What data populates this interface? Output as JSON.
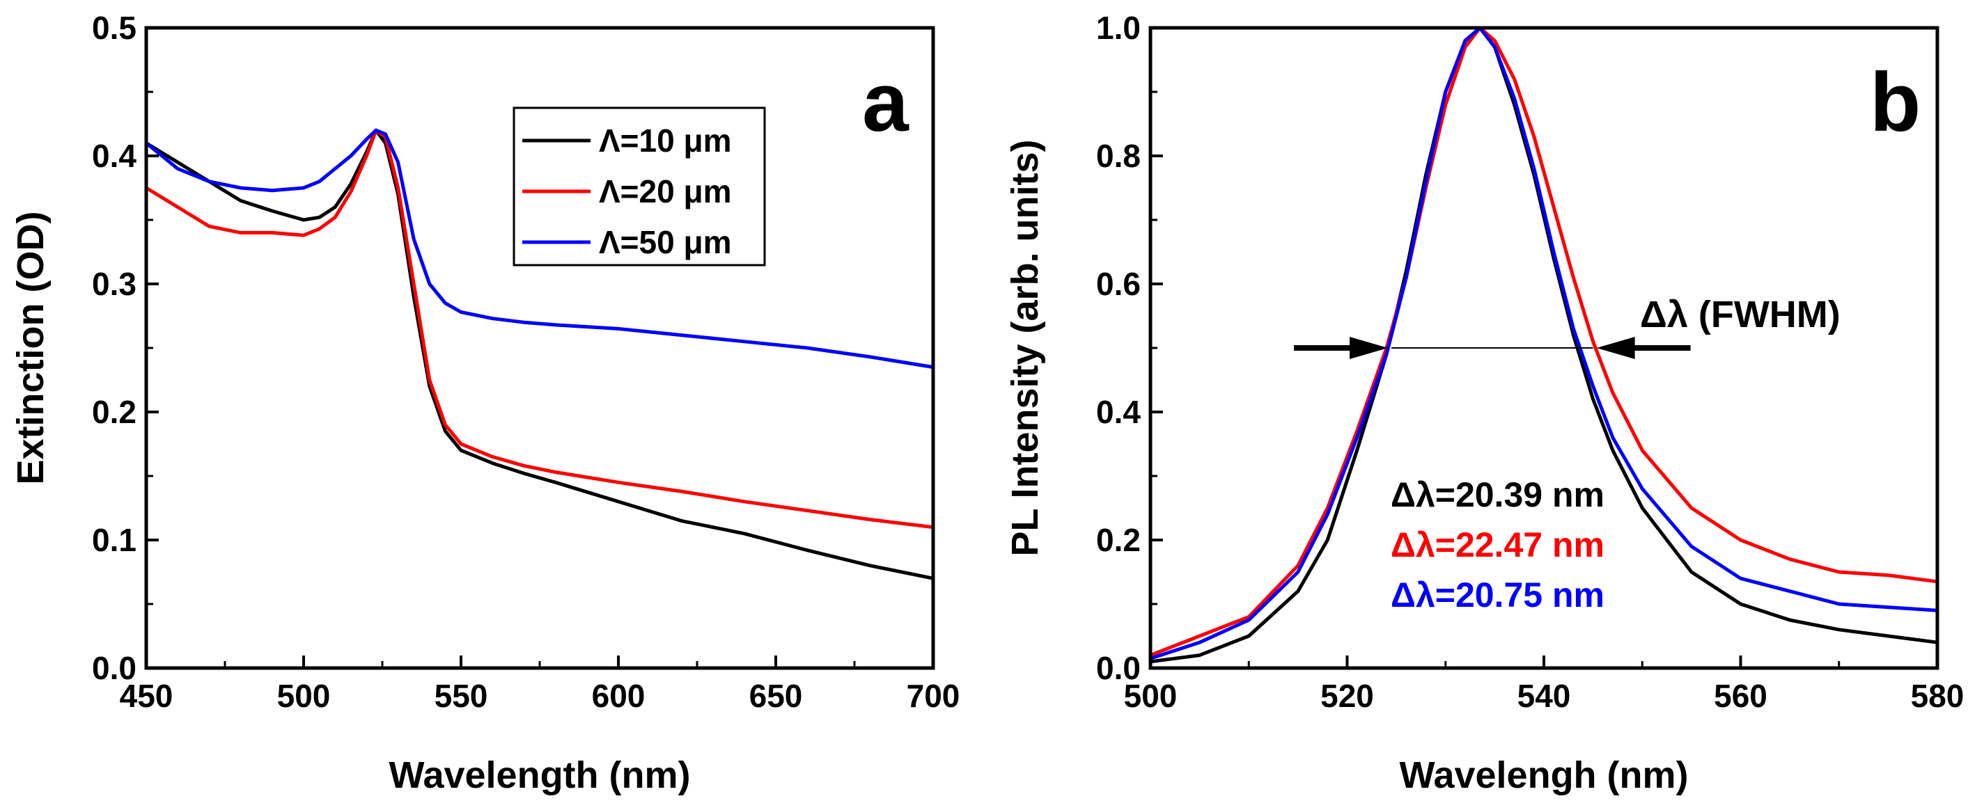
{
  "chart_data": [
    {
      "type": "line",
      "panel_label": "a",
      "xlabel": "Wavelength (nm)",
      "ylabel": "Extinction (OD)",
      "xlim": [
        450,
        700
      ],
      "ylim": [
        0.0,
        0.5
      ],
      "xticks": [
        "450",
        "500",
        "550",
        "600",
        "650",
        "700"
      ],
      "yticks": [
        "0.0",
        "0.1",
        "0.2",
        "0.3",
        "0.4",
        "0.5"
      ],
      "legend_position": "top-right",
      "series": [
        {
          "name": "Λ=10 μm",
          "color": "#000000",
          "x": [
            450,
            460,
            470,
            480,
            490,
            500,
            505,
            510,
            515,
            520,
            523,
            526,
            530,
            535,
            540,
            545,
            550,
            560,
            570,
            580,
            600,
            620,
            640,
            660,
            680,
            700
          ],
          "y": [
            0.41,
            0.395,
            0.38,
            0.365,
            0.357,
            0.35,
            0.352,
            0.36,
            0.378,
            0.403,
            0.42,
            0.41,
            0.37,
            0.29,
            0.22,
            0.185,
            0.17,
            0.16,
            0.152,
            0.145,
            0.13,
            0.115,
            0.105,
            0.092,
            0.08,
            0.07
          ]
        },
        {
          "name": "Λ=20 μm",
          "color": "#ff0000",
          "x": [
            450,
            460,
            470,
            480,
            490,
            500,
            505,
            510,
            515,
            520,
            523,
            526,
            530,
            535,
            540,
            545,
            550,
            560,
            570,
            580,
            600,
            620,
            640,
            660,
            680,
            700
          ],
          "y": [
            0.375,
            0.36,
            0.345,
            0.34,
            0.34,
            0.338,
            0.343,
            0.352,
            0.372,
            0.4,
            0.42,
            0.415,
            0.375,
            0.3,
            0.225,
            0.19,
            0.175,
            0.165,
            0.158,
            0.153,
            0.145,
            0.138,
            0.13,
            0.123,
            0.116,
            0.11
          ]
        },
        {
          "name": "Λ=50 μm",
          "color": "#0000ff",
          "x": [
            450,
            460,
            470,
            480,
            490,
            500,
            505,
            510,
            515,
            520,
            523,
            526,
            530,
            535,
            540,
            545,
            550,
            560,
            570,
            580,
            600,
            620,
            640,
            660,
            680,
            700
          ],
          "y": [
            0.41,
            0.39,
            0.38,
            0.375,
            0.373,
            0.375,
            0.38,
            0.39,
            0.4,
            0.413,
            0.42,
            0.417,
            0.395,
            0.335,
            0.3,
            0.285,
            0.278,
            0.273,
            0.27,
            0.268,
            0.265,
            0.26,
            0.255,
            0.25,
            0.243,
            0.235
          ]
        }
      ]
    },
    {
      "type": "line",
      "panel_label": "b",
      "xlabel": "Wavelengh (nm)",
      "ylabel": "PL Intensity (arb. units)",
      "xlim": [
        500,
        580
      ],
      "ylim": [
        0.0,
        1.0
      ],
      "xticks": [
        "500",
        "520",
        "540",
        "560",
        "580"
      ],
      "yticks": [
        "0.0",
        "0.2",
        "0.4",
        "0.6",
        "0.8",
        "1.0"
      ],
      "fwhm_label": "Δλ (FWHM)",
      "fwhm_level": 0.5,
      "fwhm_range": [
        524.5,
        545
      ],
      "annotations": [
        {
          "text": "Δλ=20.39 nm",
          "color": "#000000"
        },
        {
          "text": "Δλ=22.47 nm",
          "color": "#ff0000"
        },
        {
          "text": "Δλ=20.75 nm",
          "color": "#0000ff"
        }
      ],
      "series": [
        {
          "name": "Δλ=20.39 nm",
          "color": "#000000",
          "x": [
            500,
            505,
            510,
            515,
            518,
            521,
            524,
            526,
            528,
            530,
            532,
            533.5,
            535,
            537,
            539,
            541,
            543,
            545,
            547,
            550,
            555,
            560,
            565,
            570,
            575,
            580
          ],
          "y": [
            0.01,
            0.02,
            0.05,
            0.12,
            0.2,
            0.34,
            0.49,
            0.62,
            0.77,
            0.9,
            0.98,
            1.0,
            0.97,
            0.88,
            0.77,
            0.64,
            0.52,
            0.42,
            0.34,
            0.25,
            0.15,
            0.1,
            0.075,
            0.06,
            0.05,
            0.04
          ]
        },
        {
          "name": "Δλ=22.47 nm",
          "color": "#ff0000",
          "x": [
            500,
            505,
            510,
            515,
            518,
            521,
            524,
            526,
            528,
            530,
            532,
            533.5,
            535,
            537,
            539,
            541,
            543,
            545,
            547,
            550,
            555,
            560,
            565,
            570,
            575,
            580
          ],
          "y": [
            0.02,
            0.05,
            0.08,
            0.16,
            0.25,
            0.37,
            0.5,
            0.61,
            0.75,
            0.88,
            0.97,
            1.0,
            0.98,
            0.92,
            0.83,
            0.72,
            0.61,
            0.51,
            0.43,
            0.34,
            0.25,
            0.2,
            0.17,
            0.15,
            0.145,
            0.135
          ]
        },
        {
          "name": "Δλ=20.75 nm",
          "color": "#0000ff",
          "x": [
            500,
            505,
            510,
            515,
            518,
            521,
            524,
            526,
            528,
            530,
            532,
            533.5,
            535,
            537,
            539,
            541,
            543,
            545,
            547,
            550,
            555,
            560,
            565,
            570,
            575,
            580
          ],
          "y": [
            0.015,
            0.04,
            0.075,
            0.15,
            0.24,
            0.36,
            0.49,
            0.61,
            0.76,
            0.9,
            0.98,
            1.0,
            0.97,
            0.89,
            0.78,
            0.65,
            0.53,
            0.44,
            0.36,
            0.28,
            0.19,
            0.14,
            0.12,
            0.1,
            0.095,
            0.09
          ]
        }
      ]
    }
  ]
}
